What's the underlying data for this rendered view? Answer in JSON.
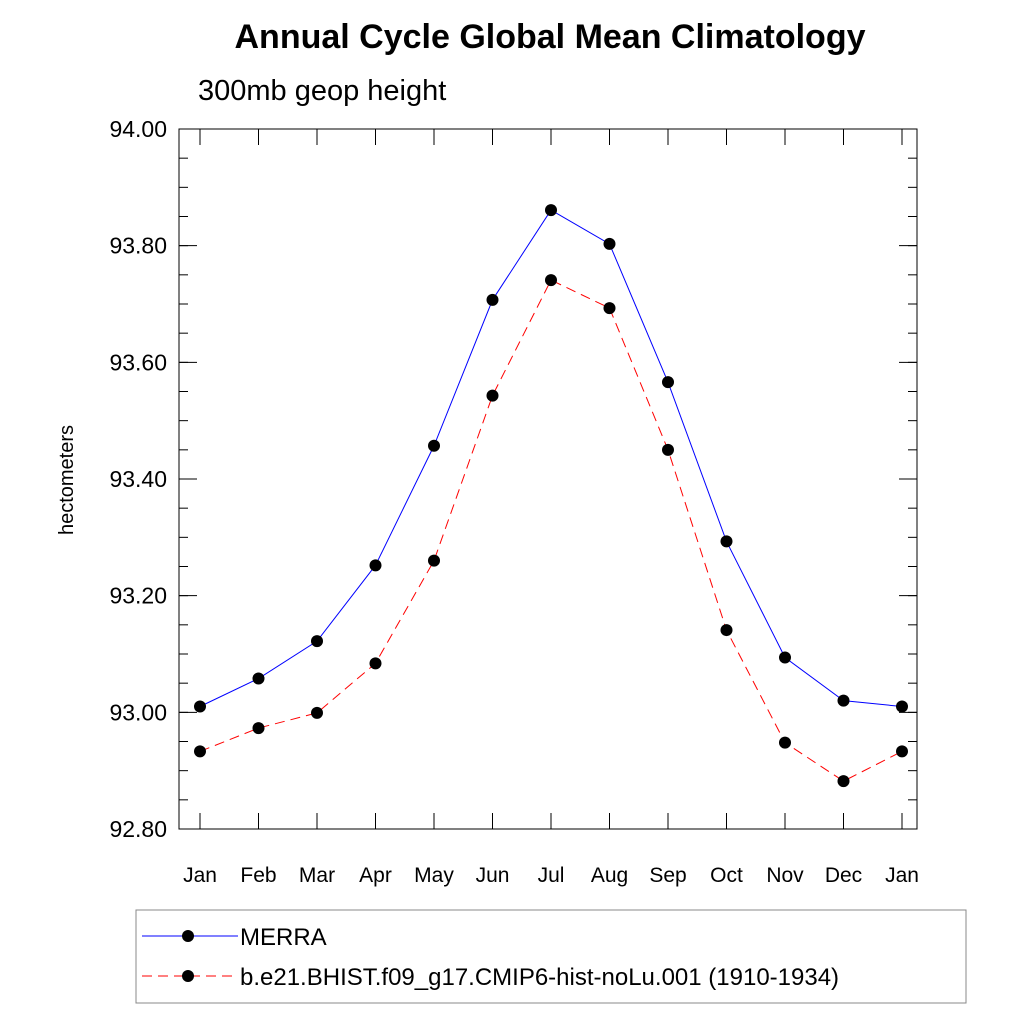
{
  "chart_data": {
    "type": "line",
    "title": "Annual Cycle Global Mean Climatology",
    "subtitle": "300mb geop height",
    "ylabel": "hectometers",
    "xlabel": "",
    "categories": [
      "Jan",
      "Feb",
      "Mar",
      "Apr",
      "May",
      "Jun",
      "Jul",
      "Aug",
      "Sep",
      "Oct",
      "Nov",
      "Dec",
      "Jan"
    ],
    "ylim": [
      92.8,
      94.0
    ],
    "yticks": [
      "94.00",
      "93.80",
      "93.60",
      "93.40",
      "93.20",
      "93.00",
      "92.80"
    ],
    "grid": false,
    "legend_position": "bottom",
    "series": [
      {
        "name": "MERRA",
        "color": "#0000ff",
        "line_style": "solid",
        "marker": "filled-circle",
        "values": [
          93.01,
          93.058,
          93.122,
          93.252,
          93.457,
          93.707,
          93.861,
          93.803,
          93.566,
          93.293,
          93.094,
          93.02,
          93.01
        ]
      },
      {
        "name": "b.e21.BHIST.f09_g17.CMIP6-hist-noLu.001 (1910-1934)",
        "color": "#ff0000",
        "line_style": "dashed",
        "marker": "filled-circle",
        "values": [
          92.933,
          92.973,
          92.999,
          93.084,
          93.26,
          93.543,
          93.741,
          93.693,
          93.45,
          93.141,
          92.948,
          92.882,
          92.933
        ]
      }
    ]
  }
}
